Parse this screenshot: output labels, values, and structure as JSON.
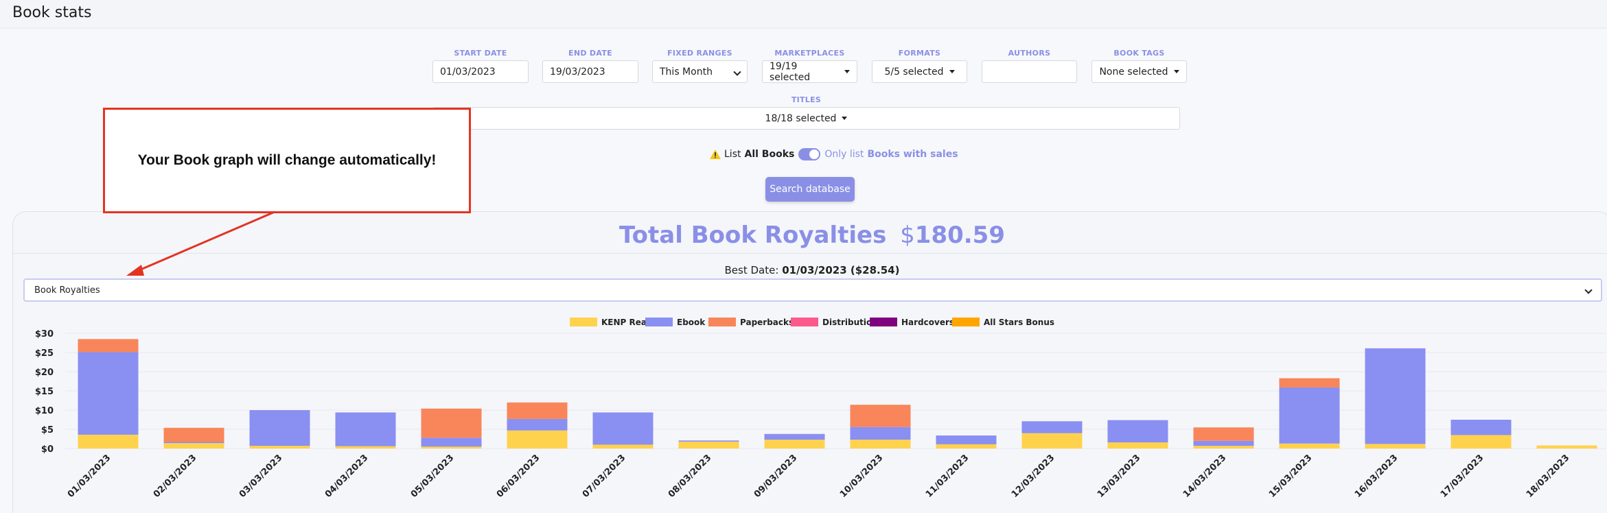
{
  "page": {
    "title": "Book stats"
  },
  "filters": {
    "start_date": {
      "label": "START DATE",
      "value": "01/03/2023"
    },
    "end_date": {
      "label": "END DATE",
      "value": "19/03/2023"
    },
    "fixed_ranges": {
      "label": "FIXED RANGES",
      "value": "This Month"
    },
    "marketplaces": {
      "label": "MARKETPLACES",
      "value": "19/19 selected"
    },
    "formats": {
      "label": "FORMATS",
      "value": "5/5 selected"
    },
    "authors": {
      "label": "AUTHORS",
      "value": ""
    },
    "book_tags": {
      "label": "BOOK TAGS",
      "value": "None selected"
    },
    "titles": {
      "label": "TITLES",
      "value": "18/18 selected"
    }
  },
  "toggle": {
    "left_prefix": "List",
    "left_bold": "All Books",
    "right_prefix": "Only list",
    "right_bold": "Books with sales",
    "state": "on"
  },
  "search_button": "Search database",
  "summary": {
    "title": "Total Book Royalties",
    "currency": "$",
    "amount": "180.59",
    "best_date_label": "Best Date:",
    "best_date_value": "01/03/2023 ($28.54)"
  },
  "chart_select": {
    "value": "Book Royalties"
  },
  "annotation": {
    "text": "Your Book graph will change automatically!"
  },
  "chart_data": {
    "type": "bar",
    "stacked": true,
    "categories": [
      "01/03/2023",
      "02/03/2023",
      "03/03/2023",
      "04/03/2023",
      "05/03/2023",
      "06/03/2023",
      "07/03/2023",
      "08/03/2023",
      "09/03/2023",
      "10/03/2023",
      "11/03/2023",
      "12/03/2023",
      "13/03/2023",
      "14/03/2023",
      "15/03/2023",
      "16/03/2023",
      "17/03/2023",
      "18/03/2023"
    ],
    "y_ticks": [
      "$0",
      "$5",
      "$10",
      "$15",
      "$20",
      "$25",
      "$30"
    ],
    "ylim": [
      0,
      30
    ],
    "legend_position": "top",
    "series": [
      {
        "name": "KENP Reads",
        "color": "#ffd24d",
        "values": [
          3.6,
          1.4,
          0.7,
          0.6,
          0.5,
          4.7,
          1.0,
          1.8,
          2.3,
          2.3,
          1.1,
          4.0,
          1.6,
          0.7,
          1.3,
          1.2,
          3.5,
          0.8
        ]
      },
      {
        "name": "Ebook",
        "color": "#8a8ff2",
        "values": [
          21.5,
          0.3,
          9.3,
          8.8,
          2.3,
          3.0,
          8.4,
          0.3,
          1.5,
          3.3,
          2.3,
          3.1,
          5.8,
          1.3,
          14.6,
          24.9,
          4.0,
          0.0
        ]
      },
      {
        "name": "Paperbacks",
        "color": "#f8865a",
        "values": [
          3.4,
          3.7,
          0.0,
          0.0,
          7.6,
          4.3,
          0.0,
          0.0,
          0.0,
          5.8,
          0.0,
          0.0,
          0.0,
          3.5,
          2.4,
          0.0,
          0.0,
          0.0
        ]
      },
      {
        "name": "Distribution",
        "color": "#fc5a8a",
        "values": [
          0,
          0,
          0,
          0,
          0,
          0,
          0,
          0,
          0,
          0,
          0,
          0,
          0,
          0,
          0,
          0,
          0,
          0
        ]
      },
      {
        "name": "Hardcovers",
        "color": "#800080",
        "values": [
          0,
          0,
          0,
          0,
          0,
          0,
          0,
          0,
          0,
          0,
          0,
          0,
          0,
          0,
          0,
          0,
          0,
          0
        ]
      },
      {
        "name": "All Stars Bonus",
        "color": "#ffa500",
        "values": [
          0,
          0,
          0,
          0,
          0,
          0,
          0,
          0,
          0,
          0,
          0,
          0,
          0,
          0,
          0,
          0,
          0,
          0
        ]
      }
    ]
  },
  "colors": {
    "accent": "#8a8fe6",
    "annotation": "#e43322"
  }
}
